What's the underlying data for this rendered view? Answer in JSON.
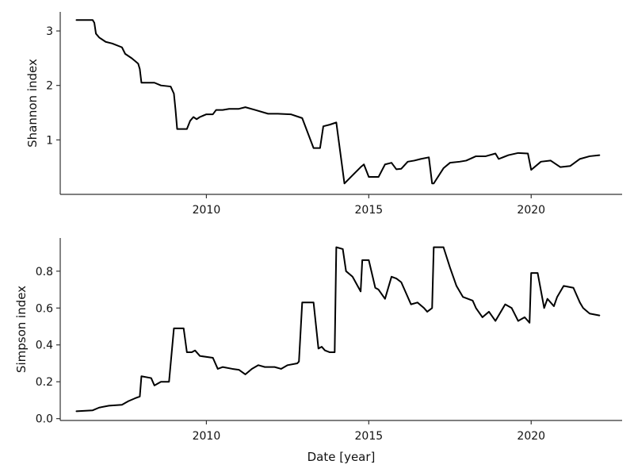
{
  "chart_data": [
    {
      "type": "line",
      "title": "",
      "xlabel": "",
      "ylabel": "Shannon index",
      "xlim": [
        2005.5,
        2022.8
      ],
      "ylim": [
        0,
        3.35
      ],
      "xticks": [
        2010,
        2015,
        2020
      ],
      "xtick_labels": [
        "2010",
        "2015",
        "2020"
      ],
      "yticks": [
        1,
        2,
        3
      ],
      "ytick_labels": [
        "1",
        "2",
        "3"
      ],
      "grid": false,
      "legend": "none",
      "color": "#000000",
      "series": [
        {
          "x": [
            2006.0,
            2006.5,
            2006.55,
            2006.6,
            2006.7,
            2006.9,
            2007.1,
            2007.4,
            2007.5,
            2007.7,
            2007.8,
            2007.9,
            2007.95,
            2008.0,
            2008.4,
            2008.6,
            2008.9,
            2009.0,
            2009.05,
            2009.1,
            2009.4,
            2009.5,
            2009.6,
            2009.7,
            2009.8,
            2010.0,
            2010.2,
            2010.3,
            2010.5,
            2010.7,
            2011.0,
            2011.2,
            2011.5,
            2011.9,
            2012.2,
            2012.6,
            2012.85,
            2012.95,
            2013.3,
            2013.4,
            2013.5,
            2013.6,
            2013.8,
            2013.9,
            2014.0,
            2014.25,
            2014.5,
            2014.75,
            2014.85,
            2015.0,
            2015.3,
            2015.5,
            2015.7,
            2015.85,
            2016.0,
            2016.2,
            2016.4,
            2016.6,
            2016.85,
            2016.95,
            2017.0,
            2017.3,
            2017.5,
            2017.8,
            2018.0,
            2018.3,
            2018.6,
            2018.9,
            2019.0,
            2019.3,
            2019.6,
            2019.9,
            2020.0,
            2020.3,
            2020.6,
            2020.9,
            2021.2,
            2021.5,
            2021.8,
            2022.1
          ],
          "y": [
            3.2,
            3.2,
            3.15,
            2.95,
            2.88,
            2.8,
            2.77,
            2.7,
            2.58,
            2.5,
            2.45,
            2.4,
            2.3,
            2.05,
            2.05,
            2.0,
            1.98,
            1.85,
            1.55,
            1.2,
            1.2,
            1.35,
            1.42,
            1.38,
            1.42,
            1.47,
            1.47,
            1.55,
            1.55,
            1.57,
            1.57,
            1.6,
            1.55,
            1.48,
            1.48,
            1.47,
            1.42,
            1.4,
            0.85,
            0.85,
            0.85,
            1.25,
            1.28,
            1.3,
            1.32,
            0.2,
            0.35,
            0.5,
            0.55,
            0.32,
            0.32,
            0.55,
            0.58,
            0.46,
            0.47,
            0.6,
            0.62,
            0.65,
            0.68,
            0.2,
            0.2,
            0.48,
            0.58,
            0.6,
            0.62,
            0.7,
            0.7,
            0.75,
            0.65,
            0.72,
            0.76,
            0.75,
            0.45,
            0.6,
            0.62,
            0.5,
            0.52,
            0.65,
            0.7,
            0.72
          ]
        }
      ]
    },
    {
      "type": "line",
      "title": "",
      "xlabel": "Date [year]",
      "ylabel": "Simpson index",
      "xlim": [
        2005.5,
        2022.8
      ],
      "ylim": [
        -0.01,
        0.98
      ],
      "xticks": [
        2010,
        2015,
        2020
      ],
      "xtick_labels": [
        "2010",
        "2015",
        "2020"
      ],
      "yticks": [
        0.0,
        0.2,
        0.4,
        0.6,
        0.8
      ],
      "ytick_labels": [
        "0.0",
        "0.2",
        "0.4",
        "0.6",
        "0.8"
      ],
      "grid": false,
      "legend": "none",
      "color": "#000000",
      "series": [
        {
          "x": [
            2006.0,
            2006.5,
            2006.7,
            2007.0,
            2007.4,
            2007.6,
            2007.8,
            2007.95,
            2008.0,
            2008.3,
            2008.4,
            2008.6,
            2008.85,
            2009.0,
            2009.3,
            2009.4,
            2009.55,
            2009.65,
            2009.8,
            2010.2,
            2010.35,
            2010.5,
            2010.8,
            2011.0,
            2011.2,
            2011.4,
            2011.6,
            2011.8,
            2012.1,
            2012.3,
            2012.5,
            2012.8,
            2012.85,
            2012.95,
            2013.3,
            2013.45,
            2013.55,
            2013.65,
            2013.8,
            2013.95,
            2014.0,
            2014.2,
            2014.3,
            2014.5,
            2014.75,
            2014.8,
            2015.0,
            2015.2,
            2015.3,
            2015.5,
            2015.7,
            2015.85,
            2016.0,
            2016.3,
            2016.5,
            2016.7,
            2016.8,
            2016.95,
            2017.0,
            2017.3,
            2017.5,
            2017.7,
            2017.9,
            2018.2,
            2018.3,
            2018.5,
            2018.7,
            2018.9,
            2019.2,
            2019.4,
            2019.6,
            2019.8,
            2019.95,
            2020.0,
            2020.2,
            2020.4,
            2020.5,
            2020.7,
            2020.8,
            2021.0,
            2021.3,
            2021.5,
            2021.6,
            2021.8,
            2022.1
          ],
          "y": [
            0.04,
            0.045,
            0.06,
            0.07,
            0.075,
            0.095,
            0.11,
            0.12,
            0.23,
            0.22,
            0.18,
            0.2,
            0.2,
            0.49,
            0.49,
            0.36,
            0.36,
            0.37,
            0.34,
            0.33,
            0.27,
            0.28,
            0.27,
            0.265,
            0.24,
            0.27,
            0.29,
            0.28,
            0.28,
            0.27,
            0.29,
            0.3,
            0.31,
            0.63,
            0.63,
            0.38,
            0.39,
            0.37,
            0.36,
            0.36,
            0.93,
            0.92,
            0.8,
            0.77,
            0.69,
            0.86,
            0.86,
            0.71,
            0.7,
            0.65,
            0.77,
            0.76,
            0.74,
            0.62,
            0.63,
            0.6,
            0.58,
            0.6,
            0.93,
            0.93,
            0.82,
            0.72,
            0.66,
            0.64,
            0.6,
            0.55,
            0.58,
            0.53,
            0.62,
            0.6,
            0.53,
            0.55,
            0.52,
            0.79,
            0.79,
            0.6,
            0.65,
            0.61,
            0.66,
            0.72,
            0.71,
            0.63,
            0.6,
            0.57,
            0.56
          ]
        }
      ]
    }
  ]
}
